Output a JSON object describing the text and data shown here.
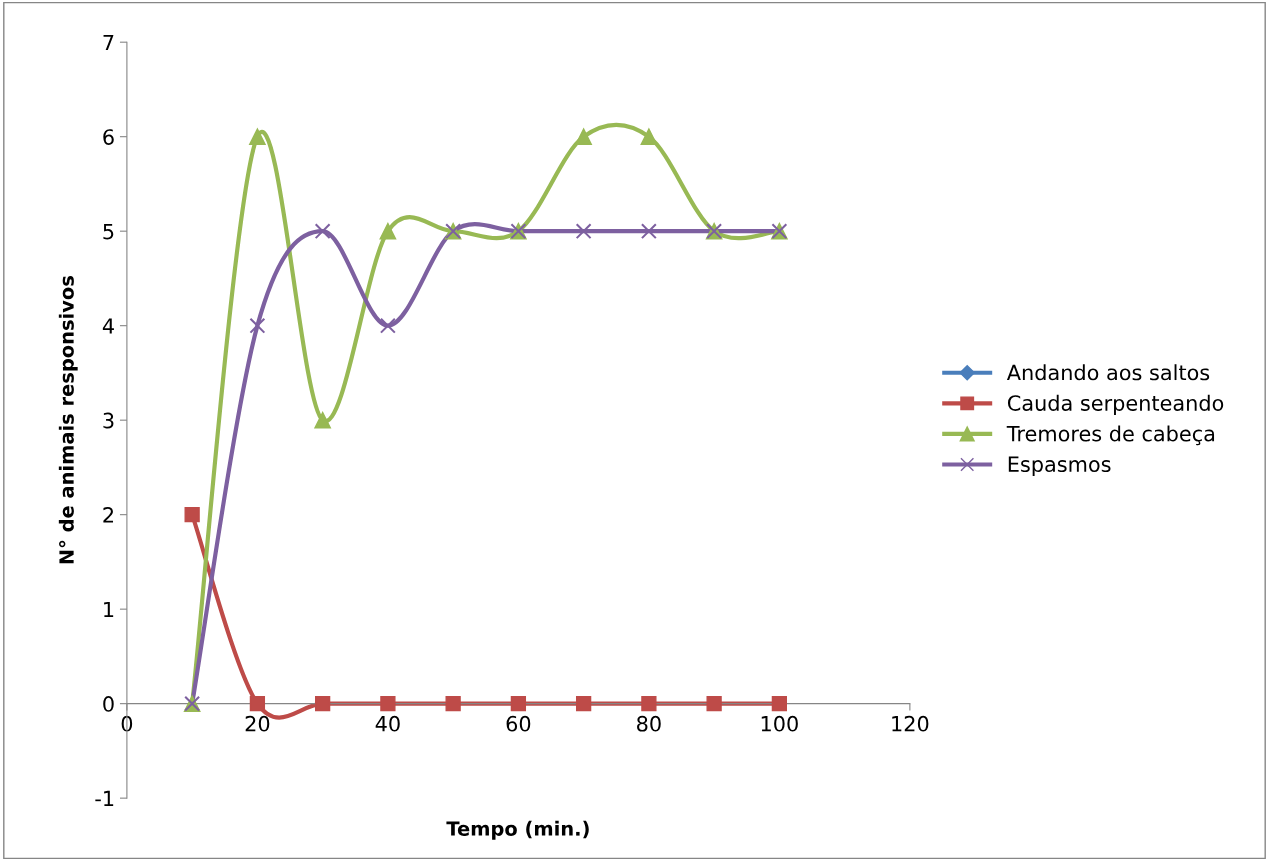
{
  "chart_data": {
    "type": "line",
    "xlabel": "Tempo (min.)",
    "ylabel": "N° de animais responsivos",
    "x": [
      10,
      20,
      30,
      40,
      50,
      60,
      70,
      80,
      90,
      100
    ],
    "series": [
      {
        "name": "Andando aos saltos",
        "color": "#4a7ebb",
        "marker": "diamond",
        "values": [
          null,
          null,
          null,
          null,
          null,
          null,
          null,
          null,
          null,
          null
        ]
      },
      {
        "name": "Cauda serpenteando",
        "color": "#be4b48",
        "marker": "square",
        "values": [
          2,
          0,
          0,
          0,
          0,
          0,
          0,
          0,
          0,
          0
        ]
      },
      {
        "name": "Tremores de cabeça",
        "color": "#98b954",
        "marker": "triangle",
        "values": [
          0,
          6,
          3,
          5,
          5,
          5,
          6,
          6,
          5,
          5
        ]
      },
      {
        "name": "Espasmos",
        "color": "#7d60a0",
        "marker": "cross",
        "values": [
          0,
          4,
          5,
          4,
          5,
          5,
          5,
          5,
          5,
          5
        ]
      }
    ],
    "xlim": [
      0,
      120
    ],
    "xticks": [
      0,
      20,
      40,
      60,
      80,
      100,
      120
    ],
    "ylim": [
      -1,
      7
    ],
    "yticks": [
      -1,
      0,
      1,
      2,
      3,
      4,
      5,
      6,
      7
    ],
    "grid": false,
    "legend": "right",
    "line_style": "solid"
  }
}
